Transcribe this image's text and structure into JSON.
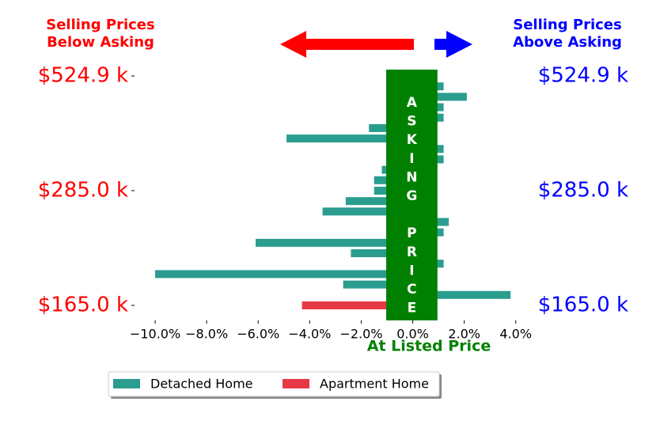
{
  "chart_data": {
    "type": "barh",
    "left_header": [
      "Selling Prices",
      "Below Asking"
    ],
    "right_header": [
      "Selling Prices",
      "Above Asking"
    ],
    "band_label": "ASKING PRICE",
    "xlabel": "At Listed Price",
    "band_range": [
      -1.03,
      0.96
    ],
    "categories": [
      "$165.0 k",
      null,
      null,
      null,
      null,
      null,
      null,
      null,
      null,
      null,
      null,
      "$285.0 k",
      null,
      null,
      null,
      null,
      null,
      null,
      null,
      null,
      null,
      null,
      "$524.9 k"
    ],
    "series": [
      {
        "name": "Detached Home",
        "color": "#2a9d8f",
        "values": [
          null,
          3.8,
          -2.7,
          -10.0,
          1.2,
          -2.4,
          -6.1,
          1.2,
          1.4,
          -3.5,
          -2.6,
          -1.5,
          -1.5,
          -1.2,
          1.2,
          1.2,
          -4.9,
          -1.7,
          1.2,
          1.2,
          2.1,
          1.2,
          0
        ]
      },
      {
        "name": "Apartment Home",
        "color": "#e63946",
        "values": [
          -4.3,
          null,
          null,
          null,
          null,
          null,
          null,
          null,
          null,
          null,
          null,
          null,
          null,
          null,
          null,
          null,
          null,
          null,
          null,
          null,
          null,
          null,
          null
        ]
      }
    ],
    "xlim": [
      -10.8,
      4.1
    ],
    "xticks": [
      {
        "value": -10,
        "label": "−10.0%"
      },
      {
        "value": -8,
        "label": "−8.0%"
      },
      {
        "value": -6,
        "label": "−6.0%"
      },
      {
        "value": -4,
        "label": "−4.0%"
      },
      {
        "value": -2,
        "label": "−2.0%"
      },
      {
        "value": 0,
        "label": "0.0%"
      },
      {
        "value": 2,
        "label": "2.0%"
      },
      {
        "value": 4,
        "label": "4.0%"
      }
    ],
    "legend": "lower center"
  }
}
